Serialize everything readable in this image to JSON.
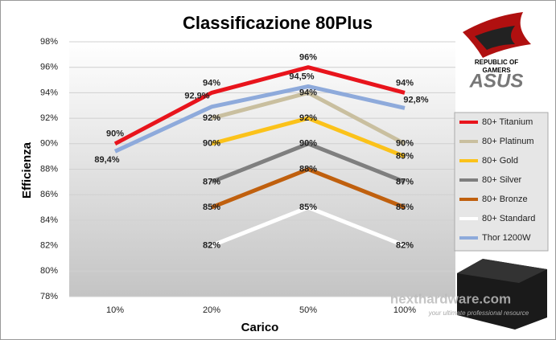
{
  "chart_data": {
    "type": "line",
    "title": "Classificazione 80Plus",
    "x_label": "Carico",
    "y_label": "Efficienza",
    "categories": [
      "10%",
      "20%",
      "50%",
      "100%"
    ],
    "ylim": [
      78,
      98
    ],
    "yticks": [
      {
        "value": 78,
        "label": "78%"
      },
      {
        "value": 80,
        "label": "80%"
      },
      {
        "value": 82,
        "label": "82%"
      },
      {
        "value": 84,
        "label": "84%"
      },
      {
        "value": 86,
        "label": "86%"
      },
      {
        "value": 88,
        "label": "88%"
      },
      {
        "value": 90,
        "label": "90%"
      },
      {
        "value": 92,
        "label": "92%"
      },
      {
        "value": 94,
        "label": "94%"
      },
      {
        "value": 96,
        "label": "96%"
      },
      {
        "value": 98,
        "label": "98%"
      }
    ],
    "grid": true,
    "legend": "right",
    "series": [
      {
        "name": "80+ Titanium",
        "color": "#e8141c",
        "values": [
          90,
          94,
          96,
          94
        ],
        "value_labels": [
          "90%",
          "94%",
          "96%",
          "94%"
        ]
      },
      {
        "name": "80+ Platinum",
        "color": "#c9bf9f",
        "values": [
          null,
          92,
          94,
          90
        ],
        "value_labels": [
          null,
          "92%",
          "94%",
          "90%"
        ]
      },
      {
        "name": "80+ Gold",
        "color": "#fbc21a",
        "values": [
          null,
          90,
          92,
          89
        ],
        "value_labels": [
          null,
          "90%",
          "92%",
          "89%"
        ]
      },
      {
        "name": "80+ Silver",
        "color": "#7f7f7f",
        "values": [
          null,
          87,
          90,
          87
        ],
        "value_labels": [
          null,
          "87%",
          "90%",
          "87%"
        ]
      },
      {
        "name": "80+ Bronze",
        "color": "#c0600e",
        "values": [
          null,
          85,
          88,
          85
        ],
        "value_labels": [
          null,
          "85%",
          "88%",
          "85%"
        ]
      },
      {
        "name": "80+ Standard",
        "color": "#ffffff",
        "values": [
          null,
          82,
          85,
          82
        ],
        "value_labels": [
          null,
          "82%",
          "85%",
          "82%"
        ]
      },
      {
        "name": "Thor 1200W",
        "color": "#8eaadb",
        "values": [
          89.4,
          92.9,
          94.5,
          92.8
        ],
        "value_labels": [
          "89,4%",
          "92,9%",
          "94,5%",
          "92,8%"
        ]
      }
    ]
  },
  "branding": {
    "rog": "REPUBLIC OF",
    "rog2": "GAMERS",
    "asus": "ASUS",
    "watermark": "nexthardware.com",
    "tagline": "your ultimate professional resource"
  }
}
